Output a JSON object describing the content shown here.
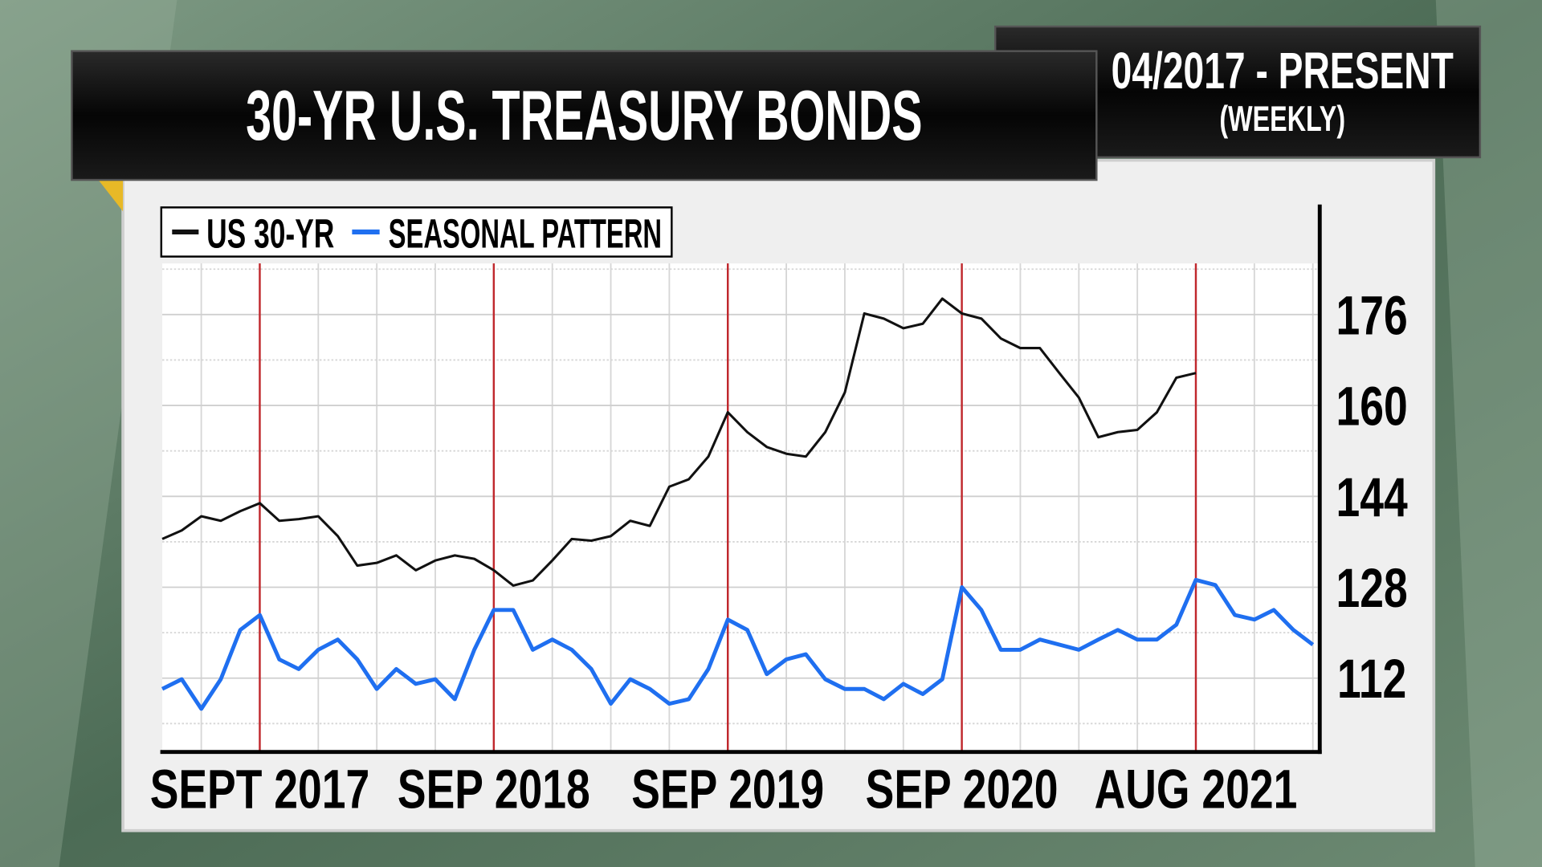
{
  "header": {
    "title": "30-YR U.S. TREASURY BONDS",
    "period": "04/2017 - PRESENT",
    "frequency": "(WEEKLY)"
  },
  "chart_data": {
    "type": "line",
    "categories": [
      null,
      null,
      null,
      null,
      null,
      "SEPT 2017",
      null,
      null,
      null,
      null,
      null,
      null,
      null,
      null,
      null,
      null,
      null,
      "SEP 2018",
      null,
      null,
      null,
      null,
      null,
      null,
      null,
      null,
      null,
      null,
      null,
      "SEP 2019",
      null,
      null,
      null,
      null,
      null,
      null,
      null,
      null,
      null,
      null,
      null,
      "SEP 2020",
      null,
      null,
      null,
      null,
      null,
      null,
      null,
      null,
      null,
      null,
      null,
      "AUG 2021",
      null,
      null,
      null,
      null,
      null,
      null
    ],
    "series": [
      {
        "name": "US 30-YR",
        "color": "#111111",
        "values": [
          136.5,
          138,
          140.5,
          139.7,
          141.4,
          142.8,
          139.7,
          140,
          140.5,
          137,
          131.8,
          132.3,
          133.6,
          131,
          132.7,
          133.6,
          133,
          131,
          128.3,
          129.2,
          132.7,
          136.5,
          136.2,
          137,
          139.7,
          138.8,
          145.7,
          147,
          151,
          158.8,
          155.3,
          152.7,
          151.5,
          151,
          155.3,
          162.3,
          176.2,
          175.3,
          173.6,
          174.4,
          178.8,
          176.2,
          175.3,
          171.8,
          170.1,
          170.1,
          165.7,
          161.4,
          154.4,
          155.3,
          155.7,
          158.8,
          164.9,
          165.7,
          null,
          null,
          null,
          null,
          null,
          null
        ]
      },
      {
        "name": "SEASONAL PATTERN",
        "color": "#1f6ff0",
        "values": [
          110.1,
          111.8,
          106.6,
          111.8,
          120.5,
          123.1,
          115.3,
          113.6,
          117,
          118.8,
          115.3,
          110.1,
          113.6,
          111,
          111.8,
          108.3,
          117,
          124,
          124,
          117,
          118.8,
          117,
          113.6,
          107.5,
          111.8,
          110.1,
          107.5,
          108.3,
          113.6,
          122.3,
          120.5,
          112.7,
          115.3,
          116.2,
          111.8,
          110.1,
          110.1,
          108.3,
          111,
          109.2,
          111.8,
          128,
          124,
          117,
          117,
          118.8,
          117.9,
          117,
          118.8,
          120.5,
          118.8,
          118.8,
          121.4,
          129.3,
          128.4,
          123.1,
          122.3,
          124,
          120.5,
          117.9
        ]
      }
    ],
    "ylim": [
      99,
      185
    ],
    "yticks": [
      112,
      128,
      144,
      160,
      176
    ],
    "minor_yticks": [
      104,
      120,
      136,
      152,
      168,
      184
    ],
    "y_axis_side": "right",
    "grid": true,
    "marker_color": "#c0282d"
  }
}
